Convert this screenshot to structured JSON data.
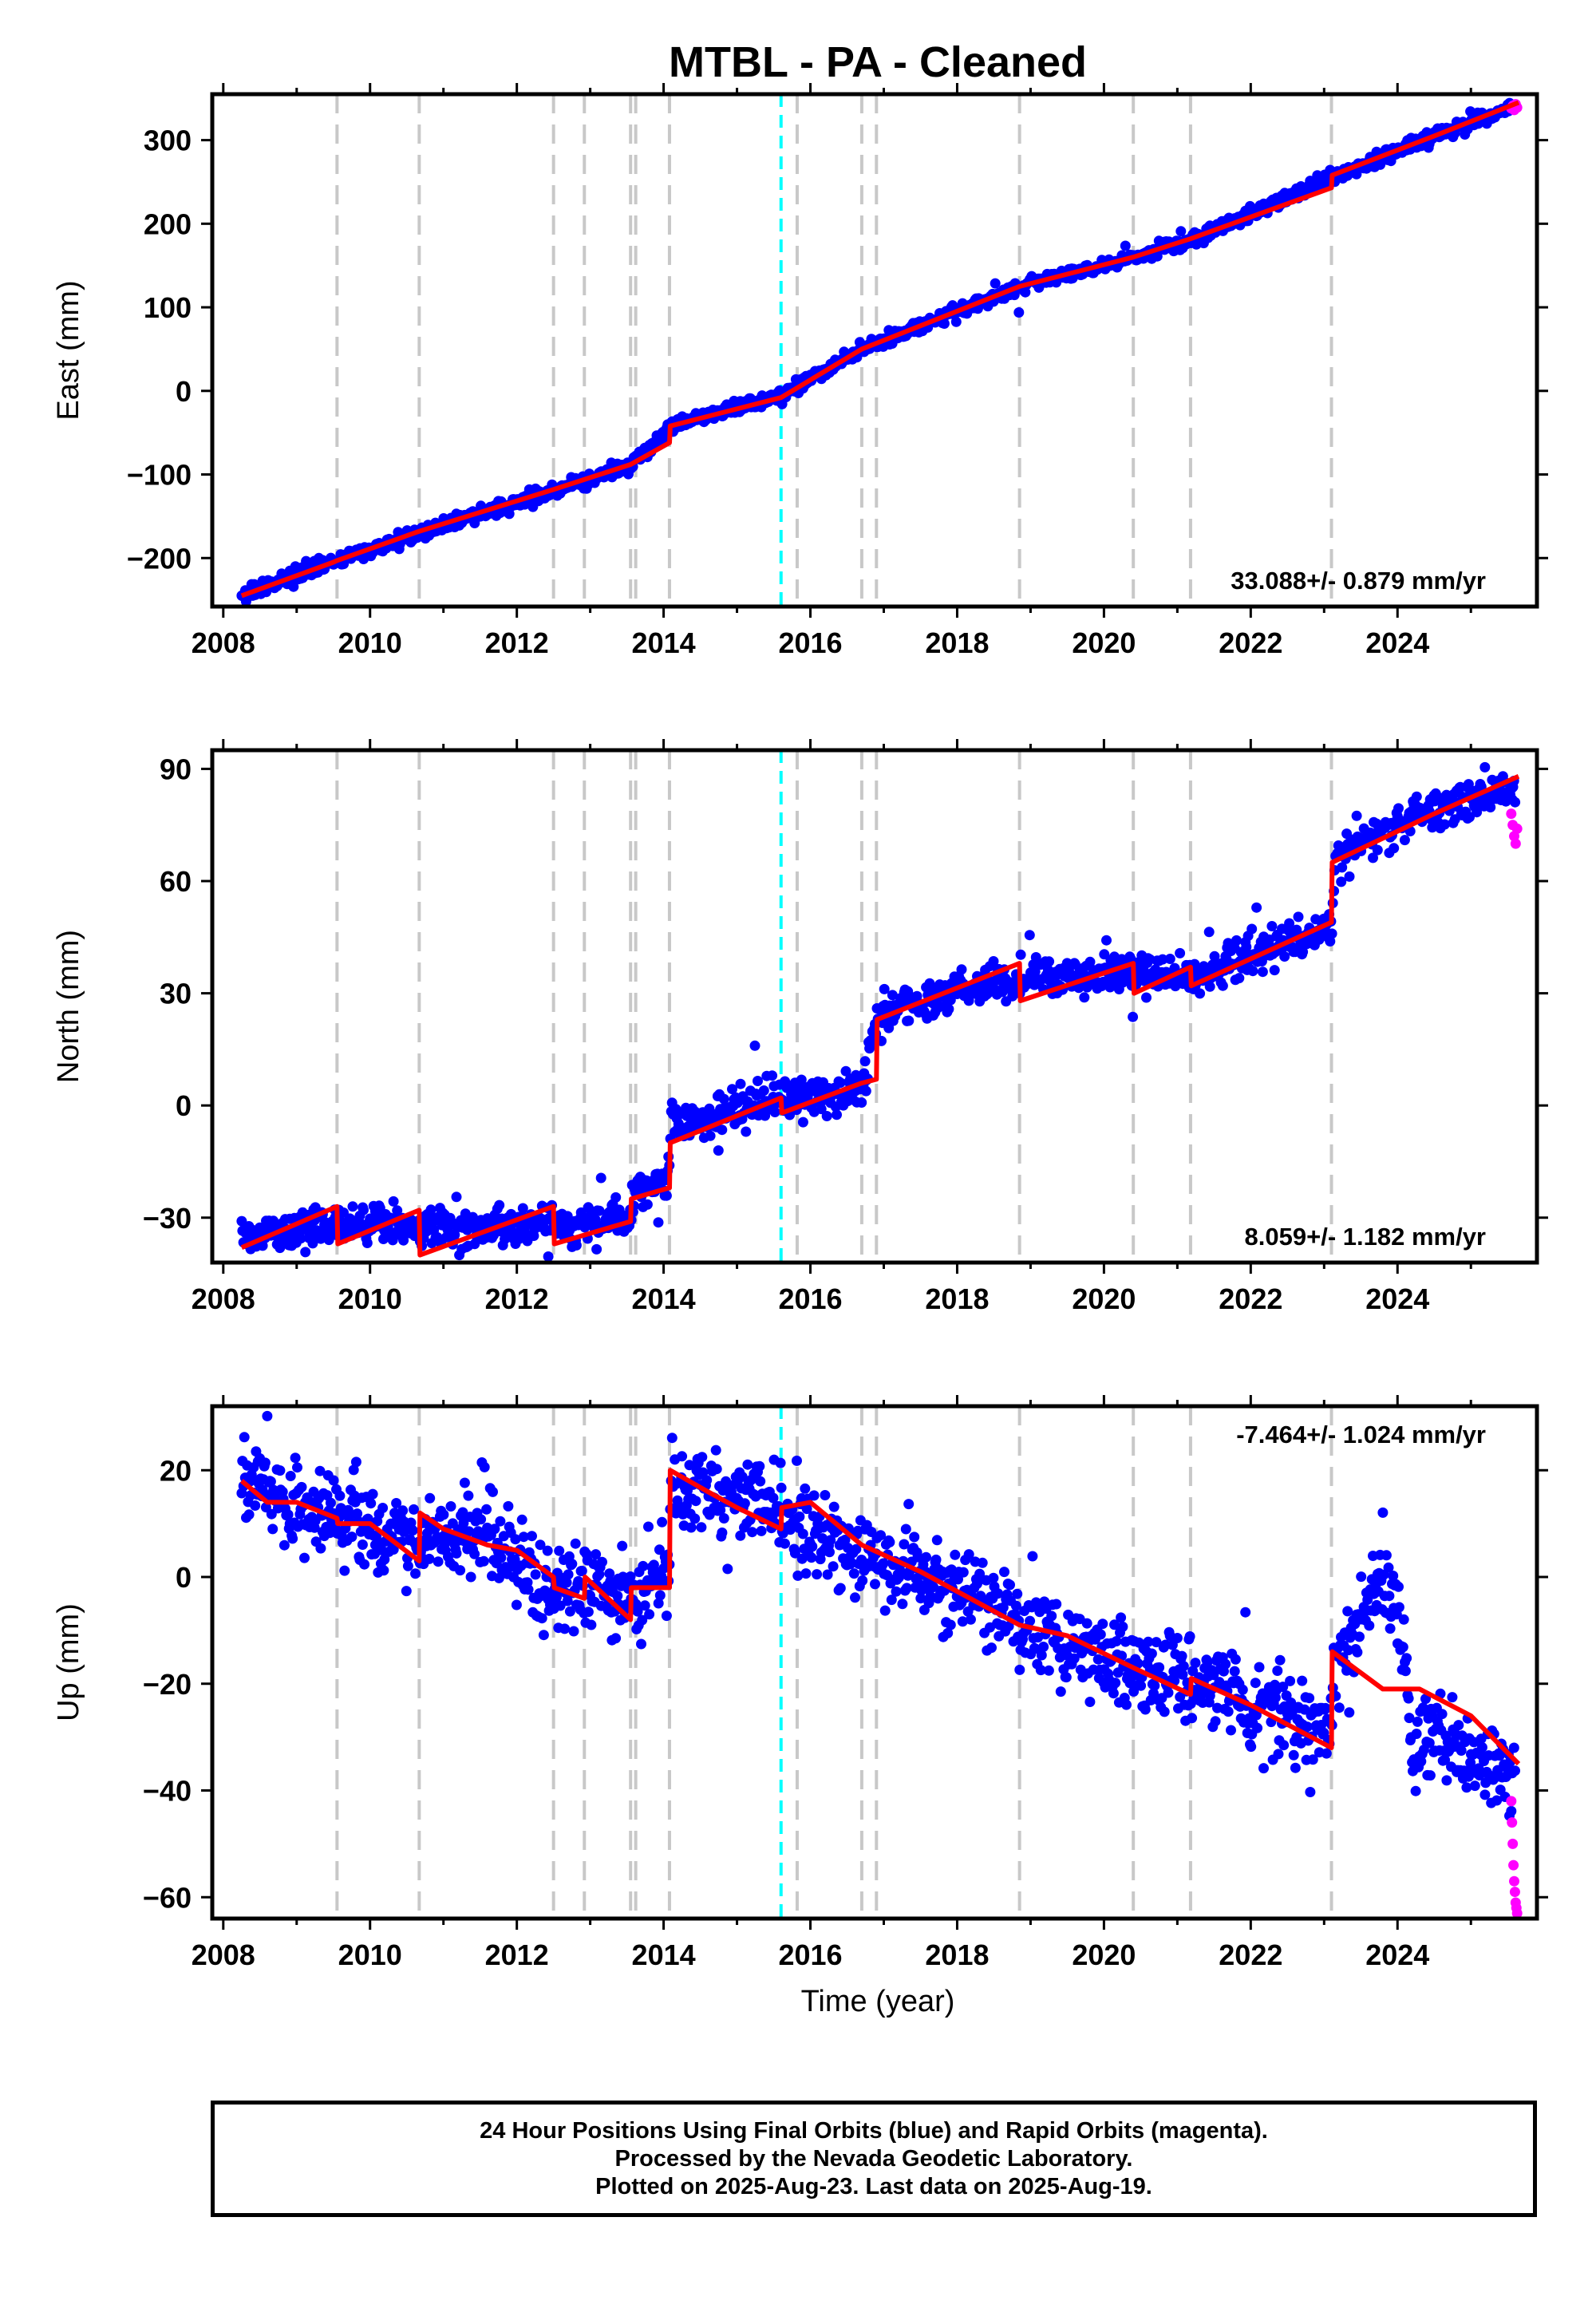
{
  "title": "MTBL  - PA - Cleaned",
  "colors": {
    "final_orbits": "#0000ff",
    "rapid_orbits": "#ff00ff",
    "model": "#ff0000",
    "equipment_change": "#c8c8c8",
    "earthquake": "#00ffff"
  },
  "vertical_markers": {
    "gray_dashed": [
      2009.55,
      2010.67,
      2012.5,
      2012.92,
      2013.55,
      2013.62,
      2014.08,
      2015.82,
      2016.7,
      2016.9,
      2018.85,
      2020.4,
      2021.18,
      2023.1
    ],
    "cyan_dashed": [
      2015.6
    ]
  },
  "xlabel": "Time (year)",
  "chart_data": [
    {
      "type": "scatter",
      "ylabel": "East (mm)",
      "xlim": [
        2007.85,
        2025.9
      ],
      "ylim": [
        -258,
        355
      ],
      "xticks": [
        2008,
        2010,
        2012,
        2014,
        2016,
        2018,
        2020,
        2022,
        2024
      ],
      "yticks": [
        -200,
        -100,
        0,
        100,
        200,
        300
      ],
      "rate_text": "33.088+/- 0.879 mm/yr",
      "rate_position": "bottom-right",
      "series": [
        {
          "role": "final_orbits",
          "trend_anchors": [
            [
              2008.25,
              -245
            ],
            [
              2009.5,
              -205
            ],
            [
              2010.67,
              -170
            ],
            [
              2012.5,
              -120
            ],
            [
              2013.55,
              -90
            ],
            [
              2014.08,
              -42
            ],
            [
              2015.6,
              -5
            ],
            [
              2016.7,
              50
            ],
            [
              2018.85,
              125
            ],
            [
              2020.4,
              160
            ],
            [
              2021.18,
              180
            ],
            [
              2023.1,
              255
            ],
            [
              2024.5,
              305
            ],
            [
              2025.6,
              340
            ]
          ],
          "noise_mm": 4,
          "n_points": 1400
        },
        {
          "role": "rapid_orbits",
          "x": [
            2025.55,
            2025.57,
            2025.59,
            2025.61,
            2025.63
          ],
          "y": [
            338,
            341,
            336,
            343,
            339
          ]
        },
        {
          "role": "model",
          "x": [
            2008.25,
            2009.5,
            2009.55,
            2010.67,
            2012.5,
            2013.55,
            2014.08,
            2014.09,
            2015.6,
            2016.7,
            2018.85,
            2020.4,
            2021.18,
            2023.1,
            2023.11,
            2024.5,
            2025.65
          ],
          "y": [
            -245,
            -205,
            -203,
            -168,
            -118,
            -88,
            -62,
            -42,
            -8,
            50,
            125,
            160,
            182,
            243,
            258,
            305,
            345
          ]
        }
      ]
    },
    {
      "type": "scatter",
      "ylabel": "North (mm)",
      "xlim": [
        2007.85,
        2025.9
      ],
      "ylim": [
        -42,
        95
      ],
      "xticks": [
        2008,
        2010,
        2012,
        2014,
        2016,
        2018,
        2020,
        2022,
        2024
      ],
      "yticks": [
        -30,
        0,
        30,
        60,
        90
      ],
      "rate_text": "8.059+/- 1.182 mm/yr",
      "rate_position": "bottom-right",
      "series": [
        {
          "role": "final_orbits",
          "trend_anchors": [
            [
              2008.25,
              -35
            ],
            [
              2009.5,
              -31
            ],
            [
              2010.67,
              -33
            ],
            [
              2012.5,
              -32
            ],
            [
              2013.55,
              -30
            ],
            [
              2013.62,
              -22
            ],
            [
              2014.05,
              -22
            ],
            [
              2014.1,
              -5
            ],
            [
              2015.6,
              2
            ],
            [
              2016.7,
              4
            ],
            [
              2016.9,
              24
            ],
            [
              2018.85,
              34
            ],
            [
              2020.4,
              35
            ],
            [
              2021.18,
              34
            ],
            [
              2023.1,
              47
            ],
            [
              2023.15,
              67
            ],
            [
              2024.5,
              80
            ],
            [
              2025.6,
              85
            ]
          ],
          "noise_mm": 2.5,
          "n_points": 1400
        },
        {
          "role": "rapid_orbits",
          "x": [
            2025.55,
            2025.57,
            2025.59,
            2025.61,
            2025.63
          ],
          "y": [
            78,
            75,
            72,
            70,
            74
          ]
        },
        {
          "role": "model",
          "x": [
            2008.25,
            2009.55,
            2009.56,
            2010.67,
            2010.68,
            2012.5,
            2012.51,
            2013.55,
            2013.56,
            2014.08,
            2014.09,
            2015.6,
            2015.61,
            2016.7,
            2016.9,
            2016.91,
            2018.85,
            2018.86,
            2020.4,
            2020.41,
            2021.18,
            2021.19,
            2023.1,
            2023.11,
            2024.5,
            2025.65
          ],
          "y": [
            -38,
            -27,
            -37,
            -28,
            -40,
            -27,
            -37,
            -31,
            -25,
            -22,
            -10,
            2,
            -2,
            6,
            7,
            23,
            38,
            28,
            38,
            30,
            37,
            32,
            49,
            65,
            78,
            88
          ]
        }
      ]
    },
    {
      "type": "scatter",
      "ylabel": "Up (mm)",
      "xlim": [
        2007.85,
        2025.9
      ],
      "ylim": [
        -64,
        32
      ],
      "xticks": [
        2008,
        2010,
        2012,
        2014,
        2016,
        2018,
        2020,
        2022,
        2024
      ],
      "yticks": [
        -60,
        -40,
        -20,
        0,
        20
      ],
      "rate_text": "-7.464+/- 1.024 mm/yr",
      "rate_position": "top-right",
      "series": [
        {
          "role": "final_orbits",
          "trend_anchors": [
            [
              2008.25,
              18
            ],
            [
              2009.5,
              11
            ],
            [
              2010.67,
              6
            ],
            [
              2011.5,
              9
            ],
            [
              2012.5,
              -2
            ],
            [
              2013.55,
              -4
            ],
            [
              2014.08,
              1
            ],
            [
              2014.1,
              17
            ],
            [
              2015.6,
              13
            ],
            [
              2016.7,
              4
            ],
            [
              2018.85,
              -8
            ],
            [
              2020.4,
              -18
            ],
            [
              2021.18,
              -20
            ],
            [
              2023.1,
              -28
            ],
            [
              2023.15,
              -18
            ],
            [
              2023.8,
              -2
            ],
            [
              2024.0,
              -8
            ],
            [
              2024.2,
              -30
            ],
            [
              2025.0,
              -33
            ],
            [
              2025.6,
              -38
            ]
          ],
          "noise_mm": 4,
          "n_points": 1400
        },
        {
          "role": "rapid_orbits",
          "x": [
            2025.55,
            2025.56,
            2025.57,
            2025.58,
            2025.59,
            2025.6,
            2025.61,
            2025.62,
            2025.63
          ],
          "y": [
            -42,
            -46,
            -50,
            -54,
            -57,
            -59,
            -61,
            -62,
            -63
          ]
        },
        {
          "role": "model",
          "x": [
            2008.25,
            2008.6,
            2009.0,
            2009.55,
            2009.56,
            2010.0,
            2010.67,
            2010.68,
            2011.0,
            2011.6,
            2012.0,
            2012.5,
            2012.51,
            2012.92,
            2012.93,
            2013.55,
            2013.56,
            2014.08,
            2014.09,
            2014.6,
            2015.0,
            2015.6,
            2015.61,
            2016.0,
            2016.7,
            2017.5,
            2018.85,
            2019.5,
            2020.4,
            2021.18,
            2021.19,
            2022.0,
            2023.1,
            2023.11,
            2023.8,
            2024.3,
            2025.0,
            2025.65
          ],
          "y": [
            18,
            14,
            14,
            11,
            10,
            10,
            3,
            12,
            9,
            6,
            5,
            0,
            -2,
            -4,
            0,
            -8,
            -2,
            -2,
            20,
            16,
            13,
            9,
            13,
            14,
            6,
            1,
            -9,
            -11,
            -17,
            -22,
            -19,
            -24,
            -32,
            -14,
            -21,
            -21,
            -26,
            -35
          ]
        }
      ]
    }
  ],
  "caption": {
    "line1": "24 Hour Positions Using Final Orbits (blue) and Rapid Orbits (magenta).",
    "line2": "Processed by the Nevada Geodetic Laboratory.",
    "line3": "Plotted on 2025-Aug-23. Last data on 2025-Aug-19."
  }
}
